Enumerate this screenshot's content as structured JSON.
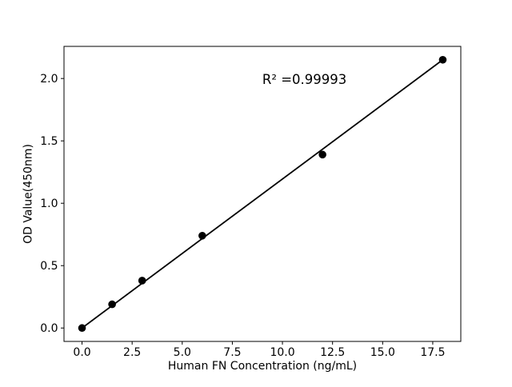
{
  "figure": {
    "background": "#ffffff"
  },
  "chart_data": {
    "type": "scatter",
    "title": "",
    "xlabel": "Human FN Concentration (ng/mL)",
    "ylabel": "OD Value(450nm)",
    "x": [
      0,
      1.5,
      3,
      6,
      12,
      18
    ],
    "y": [
      0.0,
      0.19,
      0.38,
      0.74,
      1.39,
      2.15
    ],
    "xlim": [
      -0.9,
      18.9
    ],
    "ylim": [
      -0.1075,
      2.2575
    ],
    "xtick_values": [
      0,
      2.5,
      5,
      7.5,
      10,
      12.5,
      15,
      17.5
    ],
    "xtick_labels": [
      "0.0",
      "2.5",
      "5.0",
      "7.5",
      "10.0",
      "12.5",
      "15.0",
      "17.5"
    ],
    "ytick_values": [
      0,
      0.5,
      1,
      1.5,
      2
    ],
    "ytick_labels": [
      "0.0",
      "0.5",
      "1.0",
      "1.5",
      "2.0"
    ],
    "grid": false,
    "legend": null,
    "fit_line": {
      "x1": 0,
      "y1": 0.0,
      "x2": 18,
      "y2": 2.15
    },
    "annotation": {
      "text": "R² =0.99993",
      "x": 11.1,
      "y": 1.99
    },
    "colors": {
      "marker": "#000000",
      "line": "#000000",
      "spine": "#000000",
      "tick": "#000000",
      "text": "#000000",
      "plot_background": "#ffffff"
    }
  }
}
